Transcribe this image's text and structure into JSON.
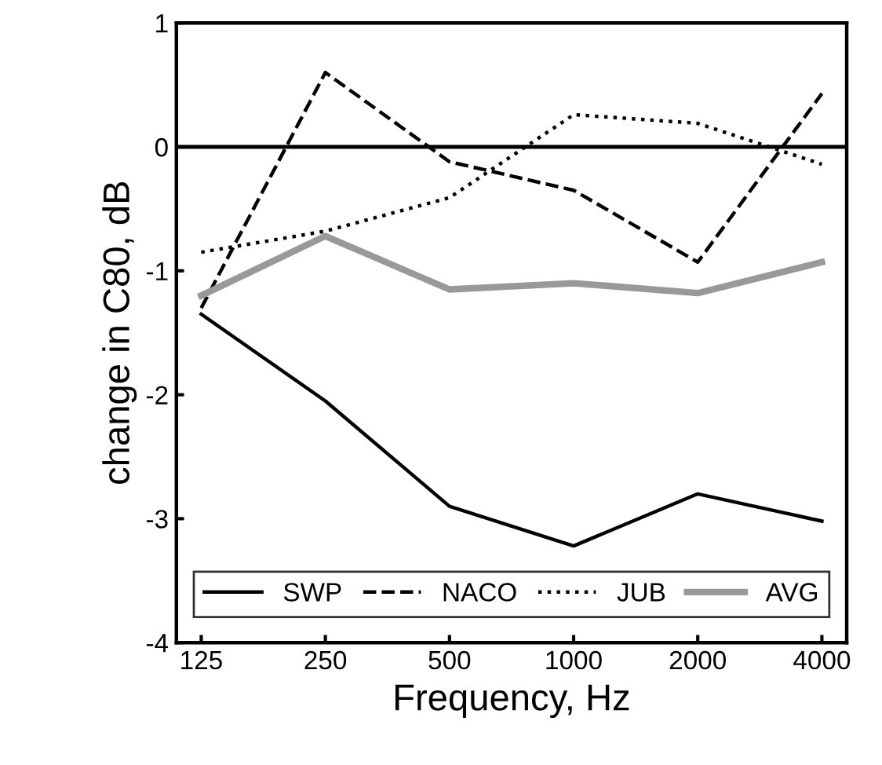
{
  "chart_data": {
    "type": "line",
    "xlabel": "Frequency, Hz",
    "ylabel": "change in C80, dB",
    "categories": [
      "125",
      "250",
      "500",
      "1000",
      "2000",
      "4000"
    ],
    "ylim": [
      -4,
      1
    ],
    "yticks": [
      -4,
      -3,
      -2,
      -1,
      0,
      1
    ],
    "grid": false,
    "legend": "bottom",
    "marker": "none",
    "ref_lines": [
      {
        "axis": "y",
        "value": 0,
        "color": "#000000",
        "line_style": "solid"
      }
    ],
    "series": [
      {
        "name": "SWP",
        "color": "#000000",
        "line_style": "solid",
        "values": [
          -1.35,
          -2.05,
          -2.9,
          -3.22,
          -2.8,
          -3.02
        ]
      },
      {
        "name": "NACO",
        "color": "#000000",
        "line_style": "dashed",
        "values": [
          -1.3,
          0.6,
          -0.12,
          -0.35,
          -0.93,
          0.43
        ]
      },
      {
        "name": "JUB",
        "color": "#000000",
        "line_style": "dotted",
        "values": [
          -0.85,
          -0.68,
          -0.41,
          0.26,
          0.19,
          -0.14
        ]
      },
      {
        "name": "AVG",
        "color": "#999999",
        "line_style": "solid",
        "values": [
          -1.2,
          -0.72,
          -1.15,
          -1.1,
          -1.18,
          -0.93
        ]
      }
    ]
  }
}
